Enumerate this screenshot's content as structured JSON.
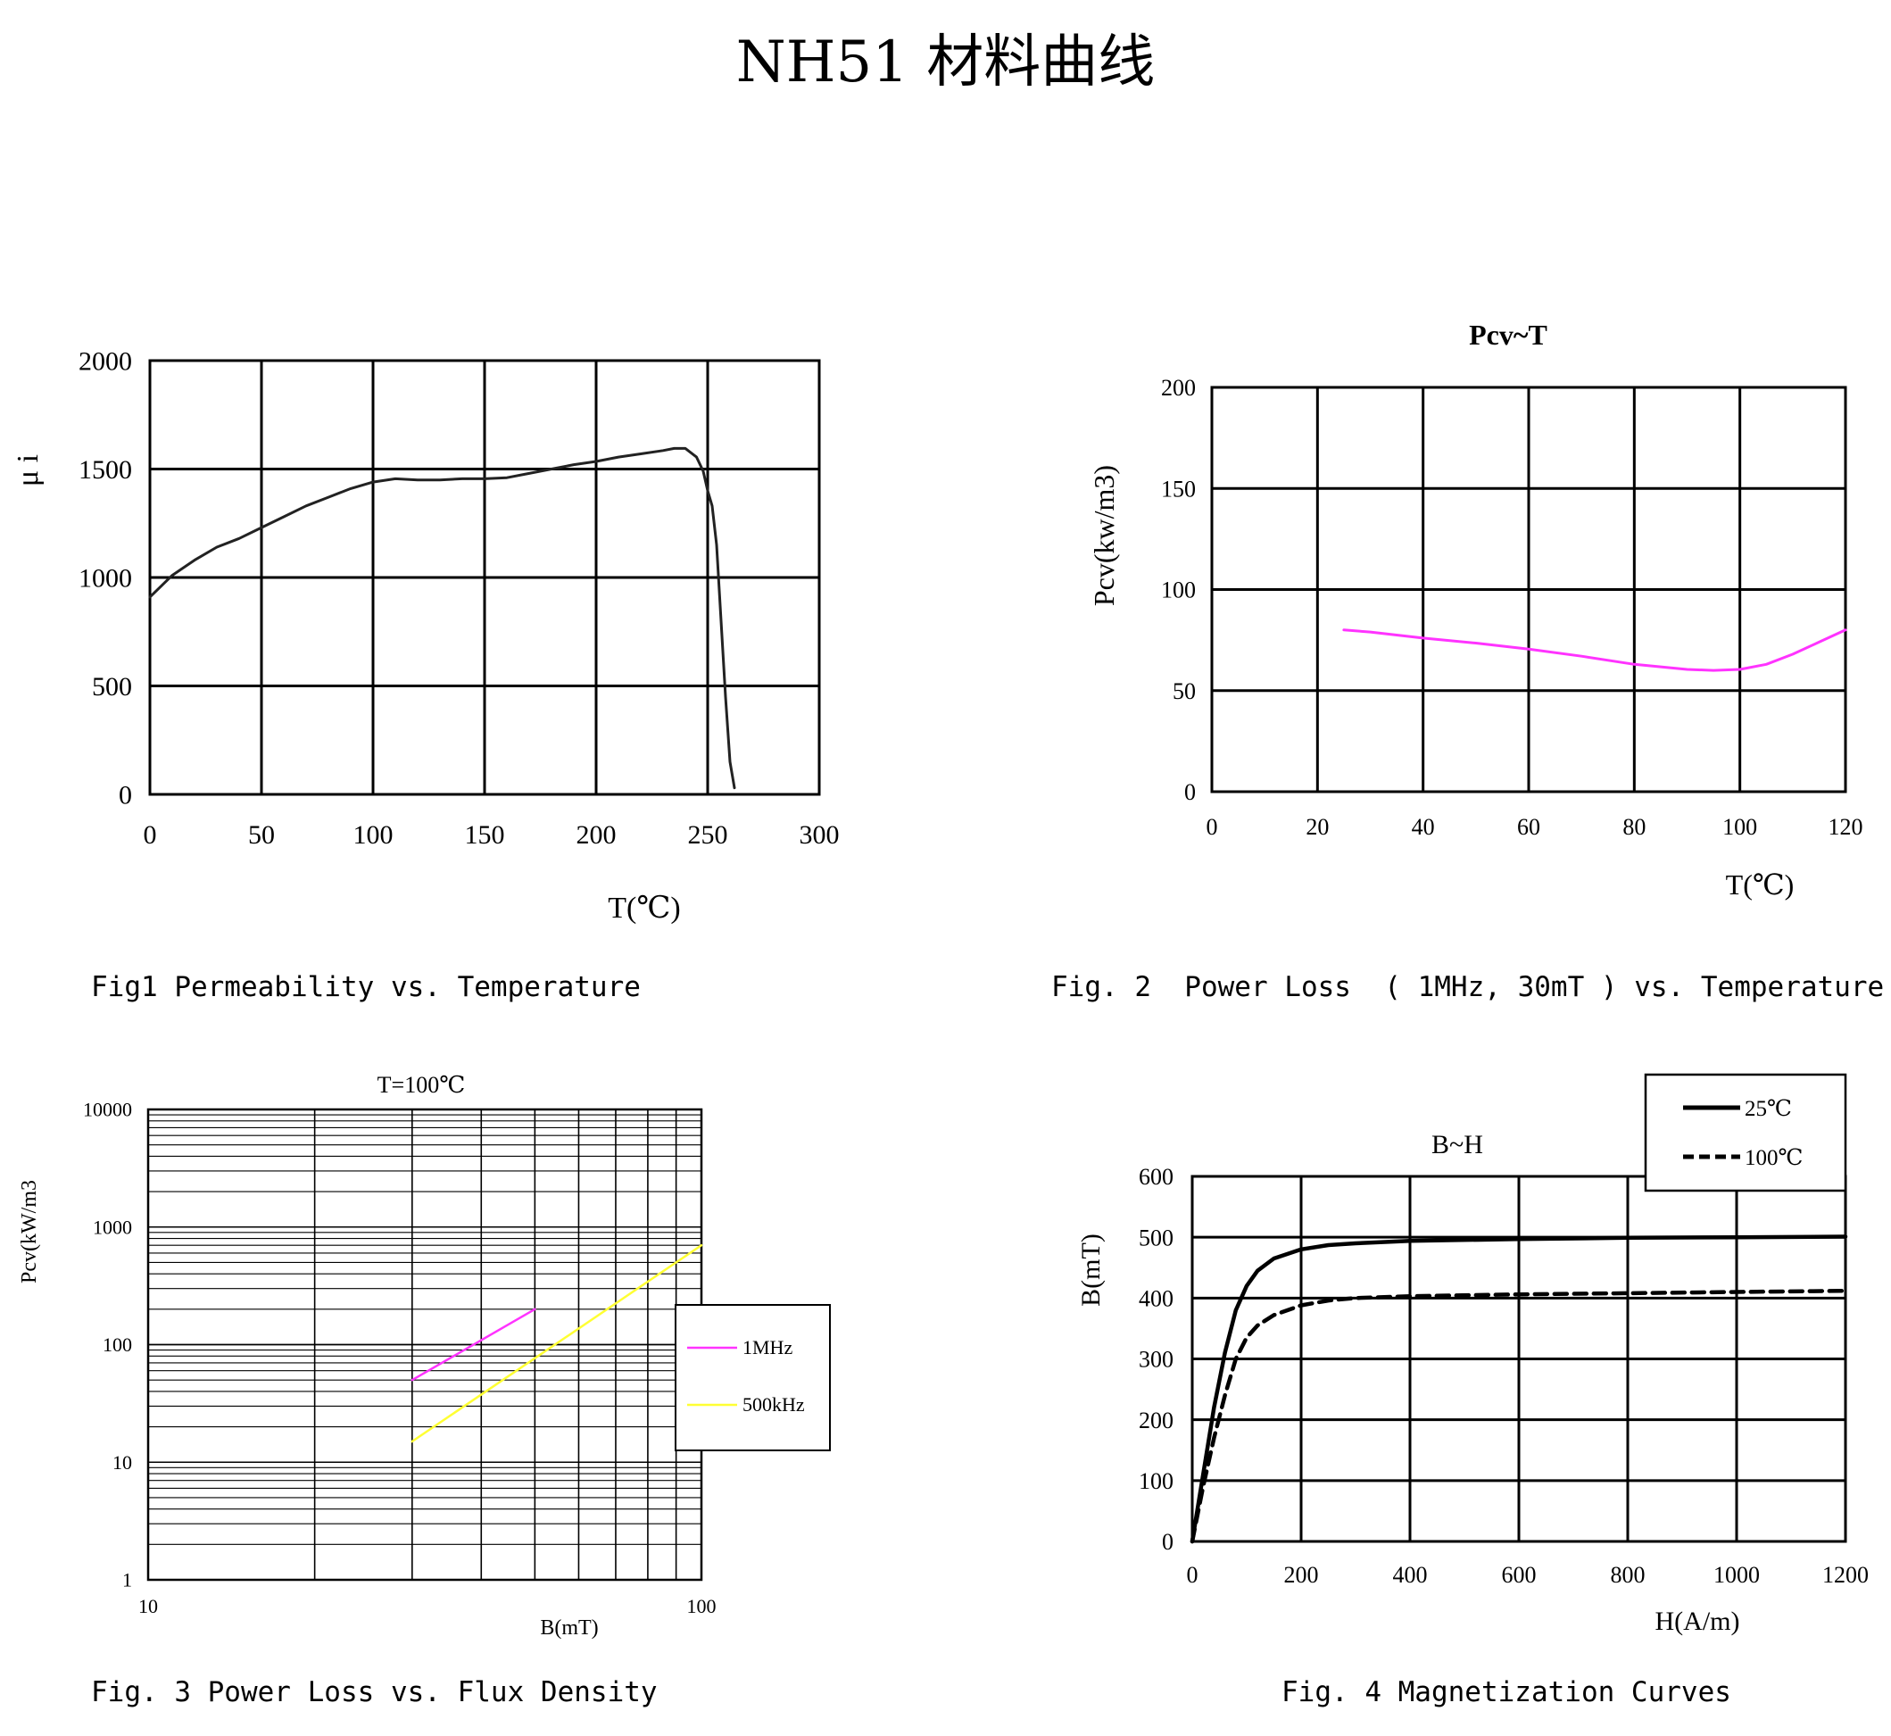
{
  "page": {
    "title": "NH51 材料曲线",
    "captions": [
      "Fig1 Permeability vs. Temperature",
      "Fig. 2  Power Loss  ( 1MHz, 30mT ) vs. Temperature",
      "Fig. 3 Power Loss vs. Flux Density",
      "Fig. 4 Magnetization Curves"
    ]
  },
  "chart_data": [
    {
      "type": "line",
      "title": "",
      "xlabel": "T(℃)",
      "ylabel": "μ i",
      "xlim": [
        0,
        300
      ],
      "ylim": [
        0,
        2000
      ],
      "xticks": [
        0,
        50,
        100,
        150,
        200,
        250,
        300
      ],
      "yticks": [
        0,
        500,
        1000,
        1500,
        2000
      ],
      "grid": true,
      "series": [
        {
          "name": "",
          "color": "#222222",
          "x": [
            0,
            10,
            20,
            30,
            40,
            50,
            60,
            70,
            80,
            90,
            100,
            110,
            120,
            130,
            140,
            150,
            160,
            170,
            180,
            190,
            200,
            210,
            220,
            230,
            235,
            240,
            245,
            248,
            250,
            252,
            254,
            256,
            258,
            260,
            262
          ],
          "y": [
            910,
            1010,
            1080,
            1140,
            1180,
            1230,
            1280,
            1330,
            1370,
            1410,
            1440,
            1455,
            1450,
            1450,
            1455,
            1455,
            1460,
            1480,
            1500,
            1520,
            1535,
            1555,
            1570,
            1585,
            1595,
            1595,
            1555,
            1490,
            1400,
            1330,
            1150,
            800,
            450,
            150,
            30
          ]
        }
      ]
    },
    {
      "type": "line",
      "title": "Pcv~T",
      "xlabel": "T(℃)",
      "ylabel": "Pcv(kw/m3)",
      "xlim": [
        0,
        120
      ],
      "ylim": [
        0,
        200
      ],
      "xticks": [
        0,
        20,
        40,
        60,
        80,
        100,
        120
      ],
      "yticks": [
        0,
        50,
        100,
        150,
        200
      ],
      "grid": true,
      "series": [
        {
          "name": "",
          "color": "#ff33ff",
          "x": [
            25,
            30,
            40,
            50,
            60,
            70,
            80,
            90,
            95,
            100,
            105,
            110,
            115,
            120
          ],
          "y": [
            80,
            79,
            76,
            73.5,
            70.5,
            67,
            63,
            60.5,
            60,
            60.5,
            63,
            68,
            74,
            80
          ]
        }
      ]
    },
    {
      "type": "line",
      "title": "T=100℃",
      "xlabel": "B(mT)",
      "ylabel": "Pcv(kW/m3",
      "xscale": "log",
      "yscale": "log",
      "xlim": [
        10,
        100
      ],
      "ylim": [
        1,
        10000
      ],
      "xticks": [
        10,
        100
      ],
      "yticks": [
        1,
        10,
        100,
        1000,
        10000
      ],
      "grid": true,
      "legend": "right",
      "series": [
        {
          "name": "1MHz",
          "color": "#ff33ff",
          "x": [
            30,
            50
          ],
          "y": [
            50,
            200
          ]
        },
        {
          "name": "500kHz",
          "color": "#ffff33",
          "x": [
            30,
            100
          ],
          "y": [
            15,
            700
          ]
        }
      ]
    },
    {
      "type": "line",
      "title": "B~H",
      "xlabel": "H(A/m)",
      "ylabel": "B(mT)",
      "xlim": [
        0,
        1200
      ],
      "ylim": [
        0,
        600
      ],
      "xticks": [
        0,
        200,
        400,
        600,
        800,
        1000,
        1200
      ],
      "yticks": [
        0,
        100,
        200,
        300,
        400,
        500,
        600
      ],
      "grid": true,
      "legend": "top-right",
      "series": [
        {
          "name": "25℃",
          "color": "#000000",
          "dash": "solid",
          "x": [
            0,
            20,
            40,
            60,
            80,
            100,
            120,
            150,
            200,
            250,
            300,
            400,
            600,
            800,
            1000,
            1200
          ],
          "y": [
            0,
            110,
            220,
            310,
            380,
            420,
            445,
            465,
            480,
            487,
            490,
            494,
            497,
            499,
            500,
            501
          ]
        },
        {
          "name": "100℃",
          "color": "#000000",
          "dash": "dashed",
          "x": [
            0,
            20,
            40,
            60,
            80,
            100,
            120,
            150,
            200,
            250,
            300,
            400,
            600,
            800,
            1000,
            1200
          ],
          "y": [
            0,
            90,
            170,
            240,
            300,
            335,
            355,
            372,
            388,
            396,
            400,
            403,
            406,
            408,
            410,
            412
          ]
        }
      ]
    }
  ]
}
